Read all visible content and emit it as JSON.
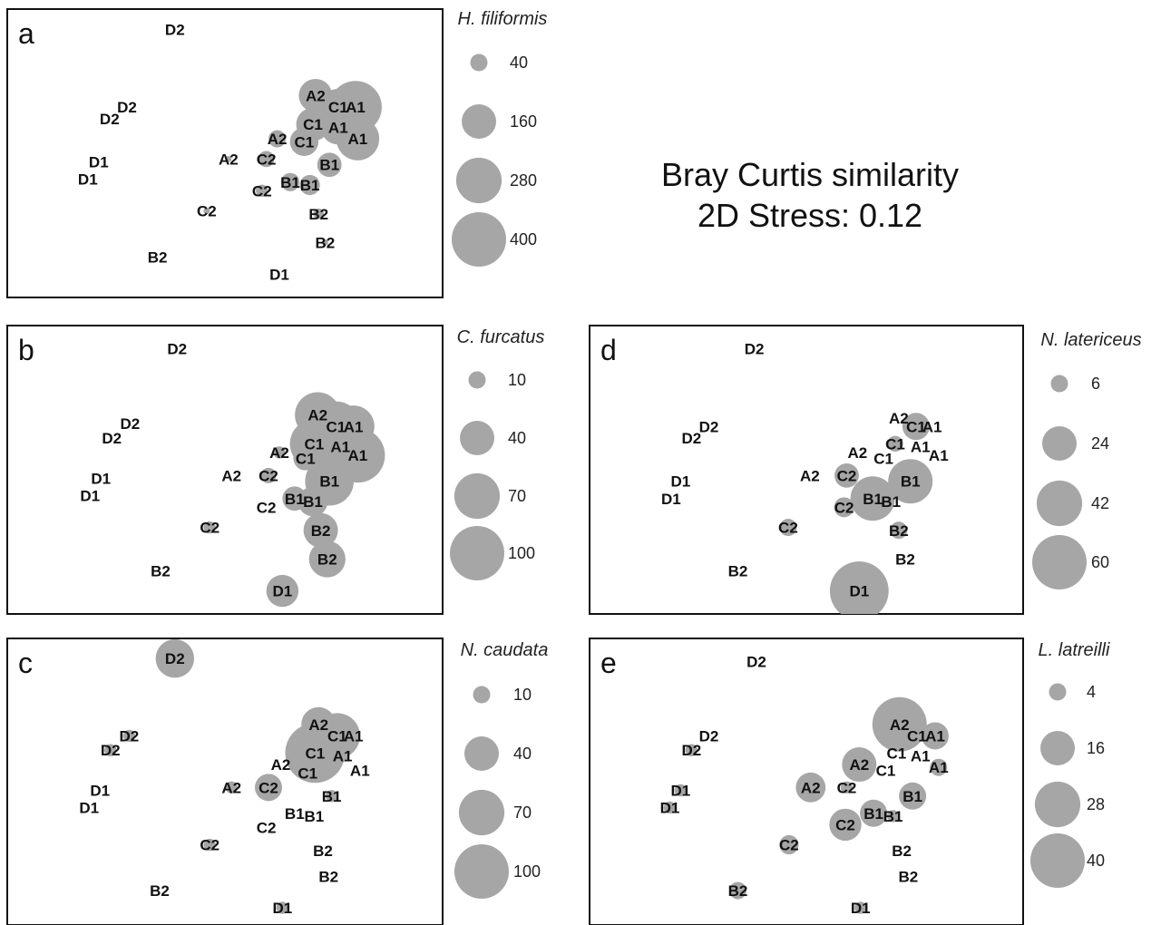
{
  "caption": {
    "line1": "Bray Curtis similarity",
    "line2": "2D Stress: 0.12"
  },
  "bubble_color": "#a6a6a6",
  "chart_data": [
    {
      "type": "scatter",
      "panel": "a",
      "species": "H. filiformis",
      "legend_values": [
        40,
        160,
        280,
        400
      ],
      "points": [
        {
          "label": "D2",
          "x": 0.385,
          "y": 0.93
        },
        {
          "label": "D2",
          "x": 0.275,
          "y": 0.66
        },
        {
          "label": "D2",
          "x": 0.235,
          "y": 0.62
        },
        {
          "label": "D1",
          "x": 0.21,
          "y": 0.47
        },
        {
          "label": "D1",
          "x": 0.185,
          "y": 0.41
        },
        {
          "label": "A2",
          "x": 0.708,
          "y": 0.7,
          "v": 150
        },
        {
          "label": "C1",
          "x": 0.76,
          "y": 0.66,
          "v": 180
        },
        {
          "label": "A1",
          "x": 0.8,
          "y": 0.66,
          "v": 370
        },
        {
          "label": "C1",
          "x": 0.702,
          "y": 0.6,
          "v": 150
        },
        {
          "label": "A1",
          "x": 0.76,
          "y": 0.59,
          "v": 160
        },
        {
          "label": "A1",
          "x": 0.805,
          "y": 0.55,
          "v": 250
        },
        {
          "label": "A2",
          "x": 0.62,
          "y": 0.55,
          "v": 40
        },
        {
          "label": "C1",
          "x": 0.682,
          "y": 0.54,
          "v": 110
        },
        {
          "label": "A2",
          "x": 0.508,
          "y": 0.48,
          "v": 5
        },
        {
          "label": "C2",
          "x": 0.595,
          "y": 0.48,
          "v": 35
        },
        {
          "label": "B1",
          "x": 0.74,
          "y": 0.46,
          "v": 80
        },
        {
          "label": "B1",
          "x": 0.65,
          "y": 0.4,
          "v": 45
        },
        {
          "label": "B1",
          "x": 0.695,
          "y": 0.39,
          "v": 55
        },
        {
          "label": "C2",
          "x": 0.585,
          "y": 0.37,
          "v": 20
        },
        {
          "label": "C2",
          "x": 0.458,
          "y": 0.3,
          "v": 5
        },
        {
          "label": "B2",
          "x": 0.715,
          "y": 0.29,
          "v": 15
        },
        {
          "label": "B2",
          "x": 0.73,
          "y": 0.19,
          "v": 5
        },
        {
          "label": "B2",
          "x": 0.345,
          "y": 0.14
        },
        {
          "label": "D1",
          "x": 0.625,
          "y": 0.08
        }
      ]
    },
    {
      "type": "scatter",
      "panel": "b",
      "species": "C. furcatus",
      "legend_values": [
        10,
        40,
        70,
        100
      ],
      "points": [
        {
          "label": "D2",
          "x": 0.39,
          "y": 0.92
        },
        {
          "label": "D2",
          "x": 0.282,
          "y": 0.66
        },
        {
          "label": "D2",
          "x": 0.24,
          "y": 0.61
        },
        {
          "label": "D1",
          "x": 0.215,
          "y": 0.47
        },
        {
          "label": "D1",
          "x": 0.19,
          "y": 0.41
        },
        {
          "label": "A2",
          "x": 0.713,
          "y": 0.69,
          "v": 70
        },
        {
          "label": "C1",
          "x": 0.755,
          "y": 0.65,
          "v": 85
        },
        {
          "label": "A1",
          "x": 0.795,
          "y": 0.65,
          "v": 60
        },
        {
          "label": "C1",
          "x": 0.705,
          "y": 0.59,
          "v": 80
        },
        {
          "label": "A1",
          "x": 0.765,
          "y": 0.58,
          "v": 40
        },
        {
          "label": "A1",
          "x": 0.805,
          "y": 0.55,
          "v": 100
        },
        {
          "label": "A2",
          "x": 0.625,
          "y": 0.56,
          "v": 5
        },
        {
          "label": "C1",
          "x": 0.685,
          "y": 0.54,
          "v": 20
        },
        {
          "label": "A2",
          "x": 0.515,
          "y": 0.48
        },
        {
          "label": "C2",
          "x": 0.6,
          "y": 0.48,
          "v": 8
        },
        {
          "label": "B1",
          "x": 0.74,
          "y": 0.46,
          "v": 80
        },
        {
          "label": "B1",
          "x": 0.66,
          "y": 0.4,
          "v": 20
        },
        {
          "label": "B1",
          "x": 0.702,
          "y": 0.39,
          "v": 30
        },
        {
          "label": "C2",
          "x": 0.595,
          "y": 0.37
        },
        {
          "label": "C2",
          "x": 0.465,
          "y": 0.3,
          "v": 5
        },
        {
          "label": "B2",
          "x": 0.72,
          "y": 0.29,
          "v": 40
        },
        {
          "label": "B2",
          "x": 0.735,
          "y": 0.19,
          "v": 45
        },
        {
          "label": "B2",
          "x": 0.352,
          "y": 0.15
        },
        {
          "label": "D1",
          "x": 0.632,
          "y": 0.08,
          "v": 35
        }
      ]
    },
    {
      "type": "scatter",
      "panel": "c",
      "species": "N. caudata",
      "legend_values": [
        10,
        40,
        70,
        100
      ],
      "points": [
        {
          "label": "D2",
          "x": 0.385,
          "y": 0.93,
          "v": 50
        },
        {
          "label": "D2",
          "x": 0.28,
          "y": 0.66,
          "v": 5
        },
        {
          "label": "D2",
          "x": 0.237,
          "y": 0.61,
          "v": 5
        },
        {
          "label": "D1",
          "x": 0.213,
          "y": 0.47
        },
        {
          "label": "D1",
          "x": 0.188,
          "y": 0.41
        },
        {
          "label": "A2",
          "x": 0.715,
          "y": 0.7,
          "v": 40
        },
        {
          "label": "C1",
          "x": 0.758,
          "y": 0.66,
          "v": 70
        },
        {
          "label": "A1",
          "x": 0.795,
          "y": 0.66,
          "v": 5
        },
        {
          "label": "C1",
          "x": 0.707,
          "y": 0.6,
          "v": 120
        },
        {
          "label": "A1",
          "x": 0.77,
          "y": 0.59,
          "v": 5
        },
        {
          "label": "A1",
          "x": 0.81,
          "y": 0.54
        },
        {
          "label": "A2",
          "x": 0.628,
          "y": 0.56
        },
        {
          "label": "C1",
          "x": 0.69,
          "y": 0.53
        },
        {
          "label": "A2",
          "x": 0.515,
          "y": 0.48,
          "v": 5
        },
        {
          "label": "C2",
          "x": 0.6,
          "y": 0.48,
          "v": 25
        },
        {
          "label": "B1",
          "x": 0.745,
          "y": 0.45,
          "v": 5
        },
        {
          "label": "B1",
          "x": 0.66,
          "y": 0.39
        },
        {
          "label": "B1",
          "x": 0.705,
          "y": 0.38
        },
        {
          "label": "C2",
          "x": 0.595,
          "y": 0.34
        },
        {
          "label": "C2",
          "x": 0.465,
          "y": 0.28,
          "v": 5
        },
        {
          "label": "B2",
          "x": 0.725,
          "y": 0.26
        },
        {
          "label": "B2",
          "x": 0.738,
          "y": 0.17
        },
        {
          "label": "B2",
          "x": 0.35,
          "y": 0.12
        },
        {
          "label": "D1",
          "x": 0.632,
          "y": 0.06,
          "v": 5
        }
      ]
    },
    {
      "type": "scatter",
      "panel": "d",
      "species": "N. latericeus",
      "legend_values": [
        6,
        24,
        42,
        60
      ],
      "points": [
        {
          "label": "D2",
          "x": 0.38,
          "y": 0.92
        },
        {
          "label": "D2",
          "x": 0.275,
          "y": 0.65
        },
        {
          "label": "D2",
          "x": 0.235,
          "y": 0.61
        },
        {
          "label": "D1",
          "x": 0.21,
          "y": 0.46
        },
        {
          "label": "D1",
          "x": 0.188,
          "y": 0.4
        },
        {
          "label": "A2",
          "x": 0.713,
          "y": 0.68
        },
        {
          "label": "C1",
          "x": 0.753,
          "y": 0.65,
          "v": 15
        },
        {
          "label": "A1",
          "x": 0.79,
          "y": 0.65
        },
        {
          "label": "C1",
          "x": 0.705,
          "y": 0.59,
          "v": 5
        },
        {
          "label": "A1",
          "x": 0.763,
          "y": 0.58
        },
        {
          "label": "A1",
          "x": 0.805,
          "y": 0.55
        },
        {
          "label": "A2",
          "x": 0.618,
          "y": 0.56
        },
        {
          "label": "C1",
          "x": 0.678,
          "y": 0.54
        },
        {
          "label": "A2",
          "x": 0.508,
          "y": 0.48
        },
        {
          "label": "C2",
          "x": 0.593,
          "y": 0.48,
          "v": 12
        },
        {
          "label": "B1",
          "x": 0.74,
          "y": 0.46,
          "v": 40
        },
        {
          "label": "B1",
          "x": 0.653,
          "y": 0.4,
          "v": 40
        },
        {
          "label": "B1",
          "x": 0.695,
          "y": 0.39
        },
        {
          "label": "C2",
          "x": 0.587,
          "y": 0.37,
          "v": 8
        },
        {
          "label": "C2",
          "x": 0.458,
          "y": 0.3,
          "v": 6
        },
        {
          "label": "B2",
          "x": 0.713,
          "y": 0.29,
          "v": 6
        },
        {
          "label": "B2",
          "x": 0.728,
          "y": 0.19
        },
        {
          "label": "B2",
          "x": 0.342,
          "y": 0.15
        },
        {
          "label": "D1",
          "x": 0.622,
          "y": 0.08,
          "v": 70
        }
      ]
    },
    {
      "type": "scatter",
      "panel": "e",
      "species": "L. latreilli",
      "legend_values": [
        4,
        16,
        28,
        40
      ],
      "points": [
        {
          "label": "D2",
          "x": 0.385,
          "y": 0.92
        },
        {
          "label": "D2",
          "x": 0.275,
          "y": 0.66
        },
        {
          "label": "D2",
          "x": 0.235,
          "y": 0.61,
          "v": 2
        },
        {
          "label": "D1",
          "x": 0.21,
          "y": 0.47,
          "v": 2
        },
        {
          "label": "D1",
          "x": 0.185,
          "y": 0.41,
          "v": 2
        },
        {
          "label": "A2",
          "x": 0.715,
          "y": 0.7,
          "v": 40
        },
        {
          "label": "C1",
          "x": 0.755,
          "y": 0.66
        },
        {
          "label": "A1",
          "x": 0.797,
          "y": 0.66,
          "v": 10
        },
        {
          "label": "C1",
          "x": 0.708,
          "y": 0.6
        },
        {
          "label": "A1",
          "x": 0.763,
          "y": 0.59
        },
        {
          "label": "A1",
          "x": 0.805,
          "y": 0.55,
          "v": 4
        },
        {
          "label": "A2",
          "x": 0.622,
          "y": 0.56,
          "v": 16
        },
        {
          "label": "C1",
          "x": 0.683,
          "y": 0.54
        },
        {
          "label": "A2",
          "x": 0.51,
          "y": 0.48,
          "v": 12
        },
        {
          "label": "C2",
          "x": 0.593,
          "y": 0.48,
          "v": 2
        },
        {
          "label": "B1",
          "x": 0.745,
          "y": 0.45,
          "v": 10
        },
        {
          "label": "B1",
          "x": 0.655,
          "y": 0.39,
          "v": 10
        },
        {
          "label": "B1",
          "x": 0.7,
          "y": 0.38,
          "v": 2
        },
        {
          "label": "C2",
          "x": 0.59,
          "y": 0.35,
          "v": 14
        },
        {
          "label": "C2",
          "x": 0.46,
          "y": 0.28,
          "v": 5
        },
        {
          "label": "B2",
          "x": 0.72,
          "y": 0.26
        },
        {
          "label": "B2",
          "x": 0.735,
          "y": 0.17
        },
        {
          "label": "B2",
          "x": 0.342,
          "y": 0.12,
          "v": 4
        },
        {
          "label": "D1",
          "x": 0.625,
          "y": 0.06,
          "v": 2
        }
      ]
    }
  ]
}
